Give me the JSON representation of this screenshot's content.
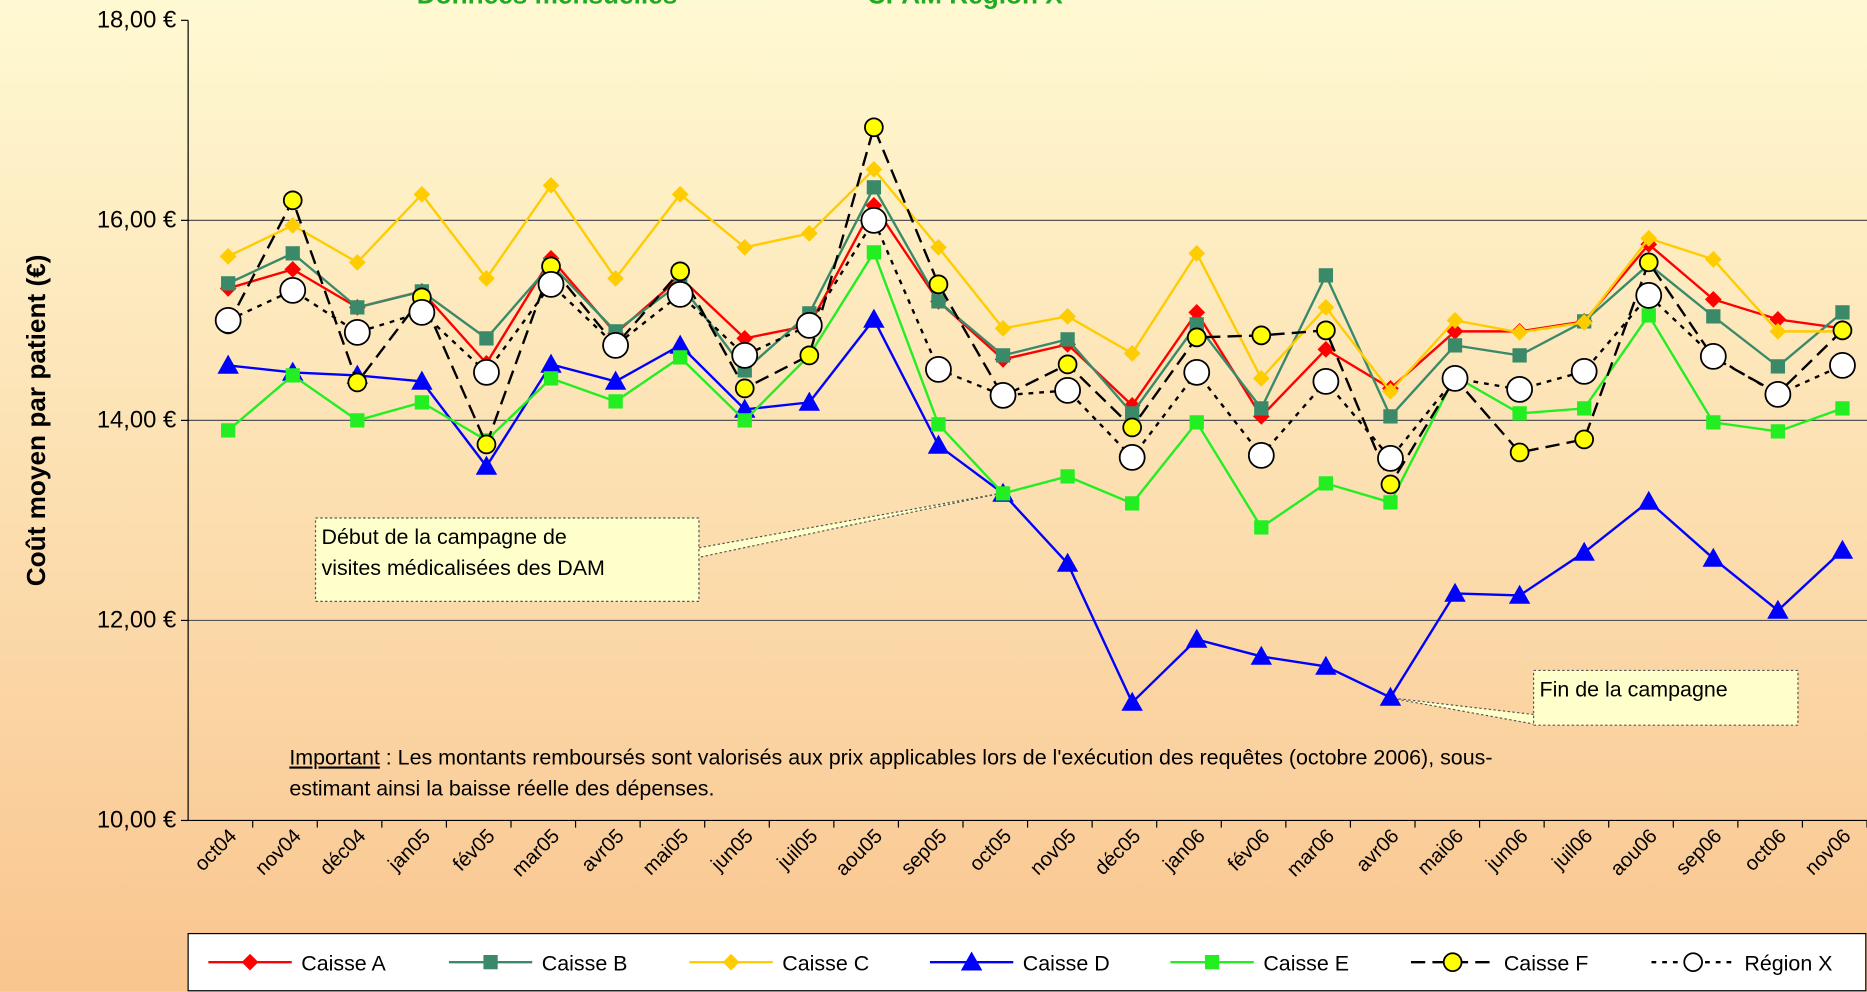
{
  "chart_data": {
    "type": "line",
    "title_parts": [
      "Données mensuelles",
      "CPAM Région X"
    ],
    "y_label": "Coût moyen par patient (€)",
    "categories": [
      "oct04",
      "nov04",
      "déc04",
      "jan05",
      "fév05",
      "mar05",
      "avr05",
      "mai05",
      "jun05",
      "juil05",
      "aou05",
      "sep05",
      "oct05",
      "nov05",
      "déc05",
      "jan06",
      "fév06",
      "mar06",
      "avr06",
      "mai06",
      "jun06",
      "juil06",
      "aou06",
      "sep06",
      "oct06",
      "nov06"
    ],
    "ylim": [
      10,
      18
    ],
    "yticks": [
      {
        "value": 10,
        "label": "10,00 €"
      },
      {
        "value": 12,
        "label": "12,00 €"
      },
      {
        "value": 14,
        "label": "14,00 €"
      },
      {
        "value": 16,
        "label": "16,00 €"
      },
      {
        "value": 18,
        "label": "18,00 €"
      }
    ],
    "grid": true,
    "legend": "bottom",
    "series": [
      {
        "name": "Caisse A",
        "color": "#ff0000",
        "marker": "diamond",
        "line_style": "solid",
        "values": [
          15.32,
          15.51,
          15.13,
          15.29,
          14.57,
          15.62,
          14.87,
          15.43,
          14.82,
          14.95,
          16.15,
          15.19,
          14.61,
          14.76,
          14.15,
          15.08,
          14.04,
          14.71,
          14.32,
          14.89,
          14.89,
          14.99,
          15.76,
          15.21,
          15.01,
          14.92
        ]
      },
      {
        "name": "Caisse B",
        "color": "#3a8a6a",
        "marker": "square",
        "line_style": "solid",
        "values": [
          15.37,
          15.67,
          15.13,
          15.29,
          14.82,
          15.56,
          14.89,
          15.37,
          14.5,
          15.07,
          16.33,
          15.19,
          14.65,
          14.81,
          14.07,
          14.96,
          14.12,
          15.45,
          14.04,
          14.75,
          14.65,
          14.99,
          15.56,
          15.04,
          14.54,
          15.08
        ]
      },
      {
        "name": "Caisse C",
        "color": "#ffcc00",
        "marker": "diamond",
        "line_style": "solid",
        "values": [
          15.64,
          15.95,
          15.58,
          16.26,
          15.42,
          16.35,
          15.42,
          16.26,
          15.73,
          15.87,
          16.51,
          15.73,
          14.92,
          15.04,
          14.67,
          15.67,
          14.42,
          15.13,
          14.29,
          15.0,
          14.88,
          14.98,
          15.82,
          15.61,
          14.89,
          14.89
        ]
      },
      {
        "name": "Caisse D",
        "color": "#0000ff",
        "marker": "triangle",
        "line_style": "solid",
        "values": [
          14.55,
          14.48,
          14.45,
          14.39,
          13.54,
          14.56,
          14.39,
          14.75,
          14.11,
          14.18,
          15.01,
          13.75,
          13.27,
          12.57,
          11.18,
          11.81,
          11.64,
          11.54,
          11.23,
          12.27,
          12.25,
          12.68,
          13.19,
          12.62,
          12.1,
          12.7
        ]
      },
      {
        "name": "Caisse E",
        "color": "#22ee22",
        "marker": "square",
        "line_style": "solid",
        "values": [
          13.9,
          14.45,
          14.0,
          14.18,
          13.8,
          14.42,
          14.19,
          14.63,
          14.0,
          14.65,
          15.68,
          13.96,
          13.27,
          13.44,
          13.17,
          13.98,
          12.93,
          13.37,
          13.18,
          14.44,
          14.07,
          14.12,
          15.05,
          13.98,
          13.89,
          14.12
        ]
      },
      {
        "name": "Caisse F",
        "color": "#ffff00",
        "marker": "circle",
        "line_style": "dashed",
        "values": [
          14.96,
          16.2,
          14.38,
          15.23,
          13.76,
          15.54,
          14.75,
          15.49,
          14.32,
          14.65,
          16.93,
          15.36,
          14.24,
          14.56,
          13.93,
          14.83,
          14.85,
          14.9,
          13.36,
          14.42,
          13.68,
          13.81,
          15.58,
          14.63,
          14.27,
          14.9
        ]
      },
      {
        "name": "Région X",
        "color": "#ffffff",
        "marker": "circle-large",
        "line_style": "dotted",
        "values": [
          15.0,
          15.3,
          14.88,
          15.08,
          14.48,
          15.36,
          14.75,
          15.26,
          14.65,
          14.95,
          16.0,
          14.51,
          14.25,
          14.3,
          13.63,
          14.48,
          13.65,
          14.39,
          13.62,
          14.42,
          14.31,
          14.49,
          15.25,
          14.64,
          14.26,
          14.55
        ]
      }
    ],
    "annotations": [
      {
        "lines": [
          "Début de la campagne de",
          "visites médicalisées des DAM"
        ]
      },
      {
        "lines": [
          "Fin de la campagne"
        ]
      }
    ],
    "note": {
      "emphasis": "Important",
      "lines": [
        " : Les montants remboursés sont valorisés aux prix applicables lors de l'exécution des requêtes (octobre 2006), sous-",
        "estimant ainsi la baisse réelle des dépenses."
      ]
    }
  }
}
